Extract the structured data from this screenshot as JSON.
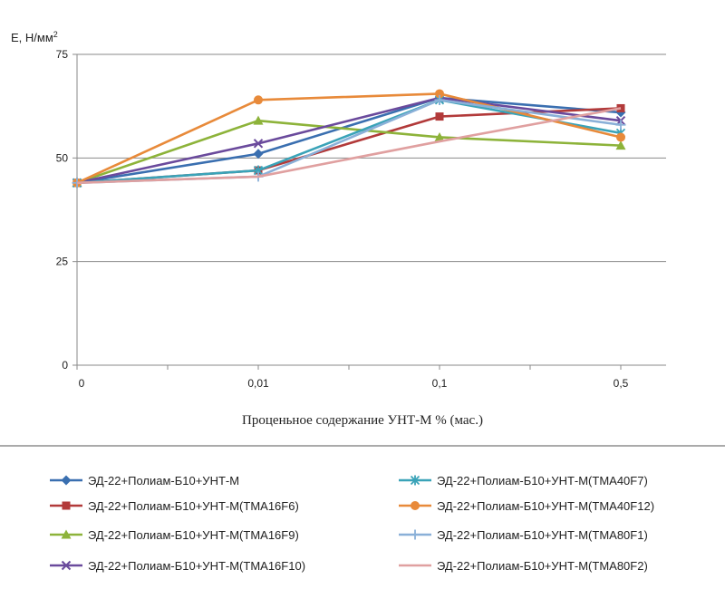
{
  "chart_data": {
    "type": "line",
    "ylabel": "E, Н/мм",
    "ylabel_sup": "2",
    "xlabel": "Проценьное содержание УНТ-М % (мас.)",
    "categories": [
      "0",
      "0,01",
      "0,1",
      "0,5"
    ],
    "ylim": [
      0,
      75
    ],
    "yticks": [
      "0",
      "25",
      "50",
      "75"
    ],
    "ytick_values": [
      0,
      25,
      50,
      75
    ],
    "grid": true,
    "legend_position": "bottom",
    "series": [
      {
        "name": "ЭД-22+Полиам-Б10+УНТ-М",
        "color": "#3a6fb0",
        "marker": "diamond",
        "values": [
          44,
          51,
          64.5,
          61
        ]
      },
      {
        "name": "ЭД-22+Полиам-Б10+УНТ-М(ТМА16F6)",
        "color": "#b23a3a",
        "marker": "square",
        "values": [
          44,
          47,
          60,
          62
        ]
      },
      {
        "name": "ЭД-22+Полиам-Б10+УНТ-М(ТМА16F9)",
        "color": "#8db33a",
        "marker": "triangle",
        "values": [
          44,
          59,
          55,
          53
        ]
      },
      {
        "name": "ЭД-22+Полиам-Б10+УНТ-М(ТМА16F10)",
        "color": "#6a4a9c",
        "marker": "x",
        "values": [
          44,
          53.5,
          64.5,
          59
        ]
      },
      {
        "name": "ЭД-22+Полиам-Б10+УНТ-М(ТМА40F7)",
        "color": "#3aa3b8",
        "marker": "star",
        "values": [
          44,
          47,
          64,
          56
        ]
      },
      {
        "name": "ЭД-22+Полиам-Б10+УНТ-М(ТМА40F12)",
        "color": "#e88a3a",
        "marker": "circle",
        "values": [
          44,
          64,
          65.5,
          55
        ]
      },
      {
        "name": "ЭД-22+Полиам-Б10+УНТ-М(ТМА80F1)",
        "color": "#8ab0d8",
        "marker": "plus",
        "values": [
          44,
          45.5,
          64,
          58
        ]
      },
      {
        "name": "ЭД-22+Полиам-Б10+УНТ-М(ТМА80F2)",
        "color": "#e0a0a0",
        "marker": "none",
        "values": [
          44,
          45.5,
          54,
          62
        ]
      }
    ]
  }
}
